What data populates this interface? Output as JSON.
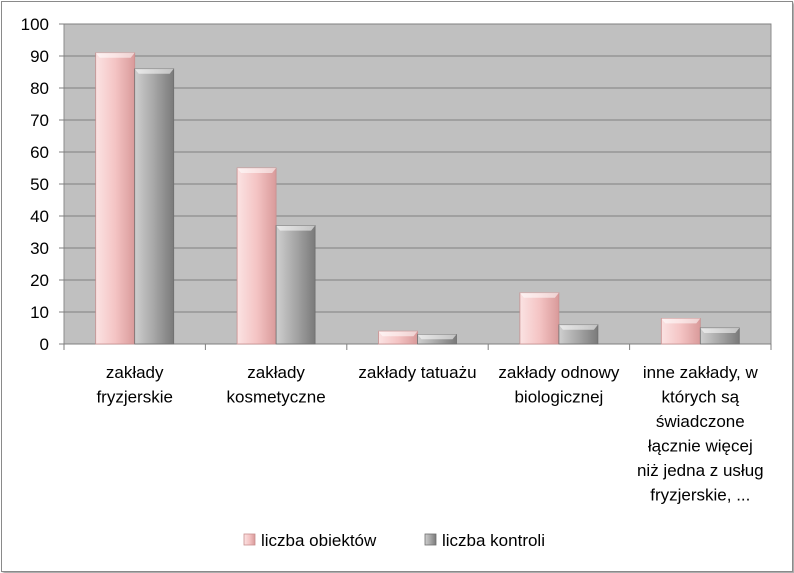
{
  "chart_data": {
    "type": "bar",
    "title": "",
    "xlabel": "",
    "ylabel": "",
    "ylim": [
      0,
      100
    ],
    "yticks": [
      0,
      10,
      20,
      30,
      40,
      50,
      60,
      70,
      80,
      90,
      100
    ],
    "grid": true,
    "legend_position": "bottom",
    "categories": [
      [
        "zakłady",
        "fryzjerskie"
      ],
      [
        "zakłady",
        "kosmetyczne"
      ],
      [
        "zakłady tatuażu"
      ],
      [
        "zakłady odnowy",
        "biologicznej"
      ],
      [
        "inne zakłady, w",
        "których są",
        "świadczone",
        "łącznie więcej",
        "niż jedna z usług",
        "fryzjerskie, ..."
      ]
    ],
    "series": [
      {
        "name": "liczba obiektów",
        "color": "#f4c4c4",
        "values": [
          91,
          55,
          4,
          16,
          8
        ]
      },
      {
        "name": "liczba kontroli",
        "color": "#a6a6a6",
        "values": [
          86,
          37,
          3,
          6,
          5
        ]
      }
    ],
    "plot_background": "#c0c0c0"
  }
}
